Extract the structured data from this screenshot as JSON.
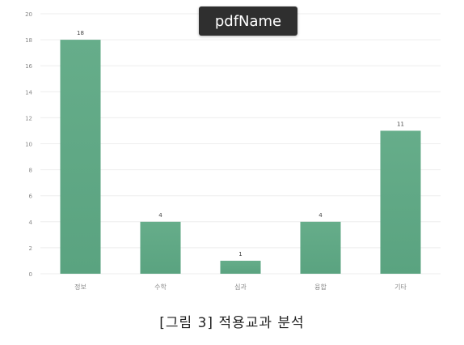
{
  "tooltip": {
    "text": "pdfName"
  },
  "caption": "[그림 3] 적용교과 분석",
  "colors": {
    "bar": "#5aa380",
    "bar_top": "#66ad8a",
    "grid": "#eeeeee",
    "tick_text": "#888888",
    "label_text": "#444444"
  },
  "chart_data": {
    "type": "bar",
    "categories": [
      "정보",
      "수학",
      "심과",
      "융합",
      "기타"
    ],
    "values": [
      18,
      4,
      1,
      4,
      11
    ],
    "data_labels": [
      "18",
      "4",
      "1",
      "4",
      "11"
    ],
    "title": "",
    "xlabel": "",
    "ylabel": "",
    "ylim": [
      0,
      20
    ],
    "y_ticks": [
      0,
      2,
      4,
      6,
      8,
      10,
      12,
      14,
      16,
      18,
      20
    ],
    "grid": true,
    "legend": "none"
  }
}
